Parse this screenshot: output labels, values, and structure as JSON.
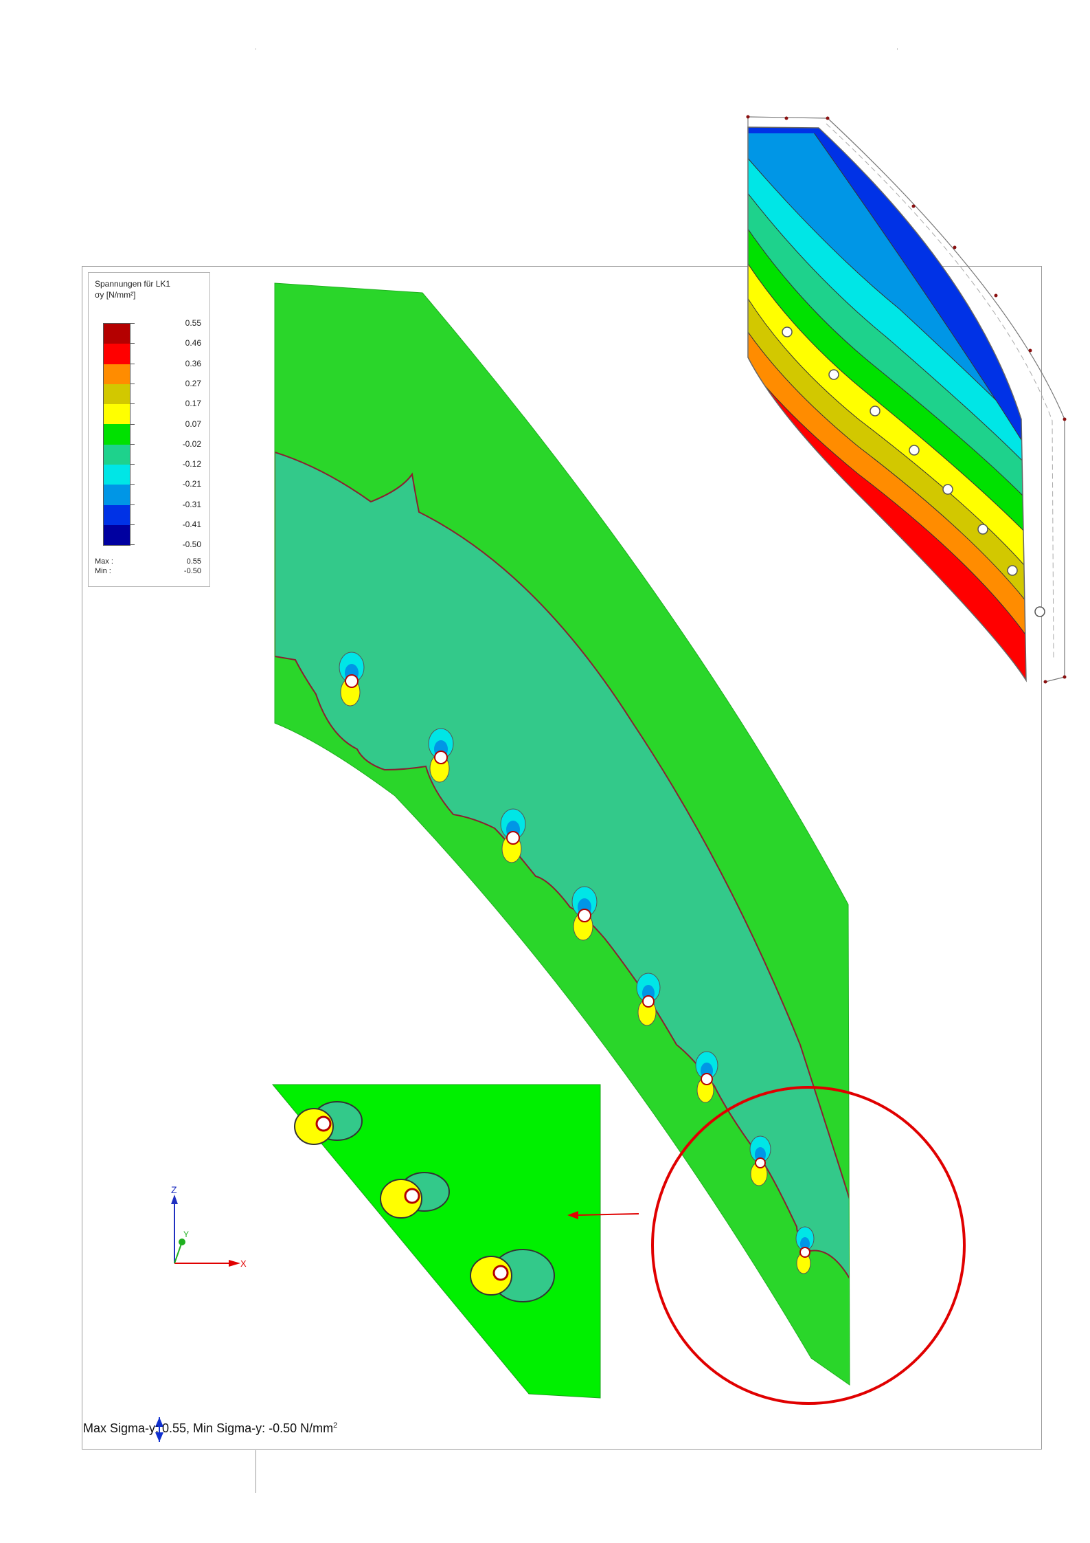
{
  "legend": {
    "title": "Spannungen für LK1",
    "unit": "σy [N/mm²]",
    "entries": [
      {
        "label": "0.55",
        "color": "#b40000"
      },
      {
        "label": "0.46",
        "color": "#ff0000"
      },
      {
        "label": "0.36",
        "color": "#ff8c00"
      },
      {
        "label": "0.27",
        "color": "#d2c800"
      },
      {
        "label": "0.17",
        "color": "#ffff00"
      },
      {
        "label": "0.07",
        "color": "#00e100"
      },
      {
        "label": "-0.02",
        "color": "#1ed28c"
      },
      {
        "label": "-0.12",
        "color": "#00e6e6"
      },
      {
        "label": "-0.21",
        "color": "#0096e6"
      },
      {
        "label": "-0.31",
        "color": "#0032e6"
      },
      {
        "label": "-0.41",
        "color": "#0000a0"
      },
      {
        "label": "-0.50",
        "color": ""
      }
    ],
    "max_label": "Max :",
    "max_value": "0.55",
    "min_label": "Min :",
    "min_value": "-0.50"
  },
  "status_bar": {
    "text": "Max Sigma-y: 0.55, Min Sigma-y: -0.50 N/mm",
    "superscript": "2"
  },
  "axes": {
    "z_label": "Z",
    "y_label": "Y",
    "x_label": "X"
  },
  "colors": {
    "plate_green": "#2ad62a",
    "inner_band": "#33c98a",
    "inset_green": "#00f000",
    "highlight_circle": "#e00000",
    "arrow": "#e00000"
  }
}
